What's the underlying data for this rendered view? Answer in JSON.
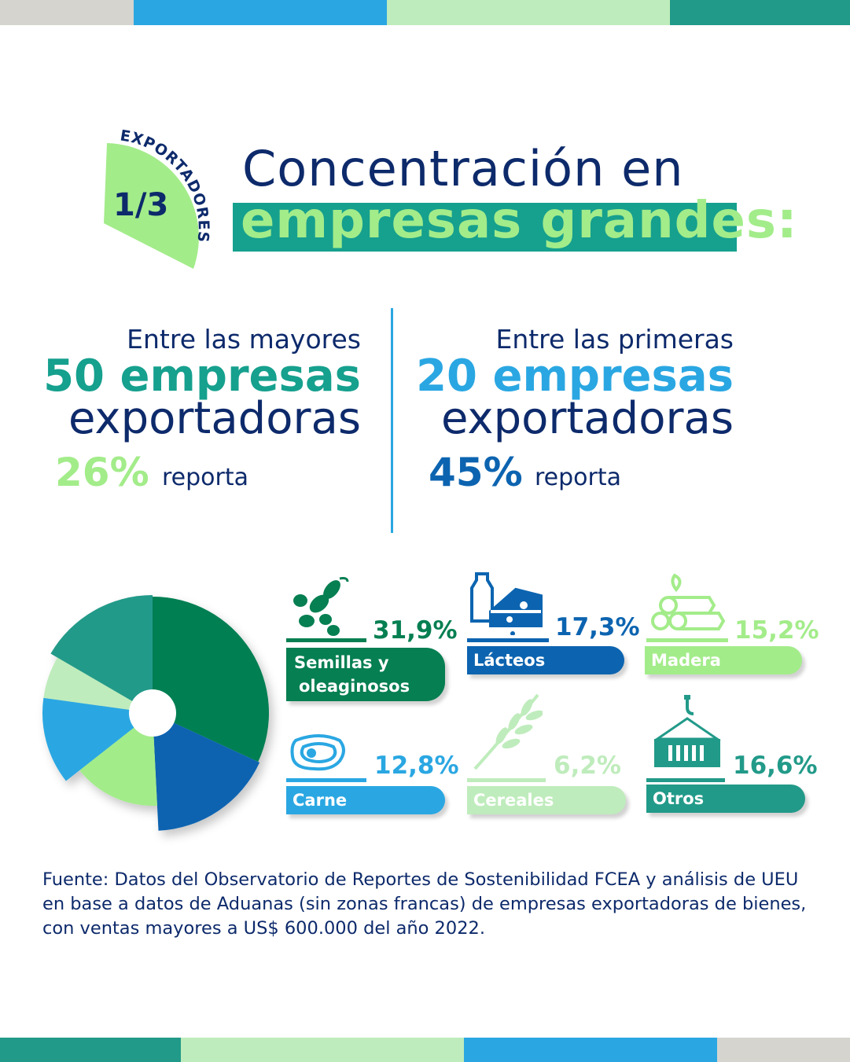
{
  "colors": {
    "navy": "#0d2a6b",
    "teal": "#16a08e",
    "light_green": "#a3ec8a",
    "sky_blue": "#2aa7e2",
    "dark_green": "#067f52",
    "blue": "#0c64b0",
    "pale_green": "#bfecbc",
    "grey": "#d6d4cf"
  },
  "badge": {
    "label": "EXPORTADORES",
    "number": "1/3"
  },
  "title": {
    "line1": "Concentración en",
    "line2": "empresas grandes:"
  },
  "stats": [
    {
      "intro": "Entre las mayores",
      "highlight": "50 empresas",
      "subject": "exportadoras",
      "percent": "26%",
      "verb": "reporta"
    },
    {
      "intro": "Entre las primeras",
      "highlight": "20 empresas",
      "subject": "exportadoras",
      "percent": "45%",
      "verb": "reporta"
    }
  ],
  "chart_data": {
    "type": "pie",
    "categories": [
      "Semillas y oleaginosos",
      "Lácteos",
      "Madera",
      "Carne",
      "Cereales",
      "Otros"
    ],
    "values": [
      31.9,
      17.3,
      15.2,
      12.8,
      6.2,
      16.6
    ],
    "value_labels": [
      "31,9%",
      "17,3%",
      "15,2%",
      "12,8%",
      "6,2%",
      "16,6%"
    ],
    "label_lines": [
      [
        "Semillas y",
        "oleaginosos"
      ],
      [
        "Lácteos"
      ],
      [
        "Madera"
      ],
      [
        "Carne"
      ],
      [
        "Cereales"
      ],
      [
        "Otros"
      ]
    ],
    "icons": [
      "soybean-pod-icon",
      "milk-and-cheese-icon",
      "wood-logs-icon",
      "meat-steak-icon",
      "wheat-stalk-icon",
      "shipping-container-icon"
    ],
    "colors": [
      "#067f52",
      "#0c64b0",
      "#a3ec8a",
      "#2aa7e2",
      "#bfecbc",
      "#229a89"
    ],
    "value_colors": [
      "#067f52",
      "#0c64b0",
      "#a3ec8a",
      "#2aa7e2",
      "#bfecbc",
      "#229a89"
    ],
    "units": "%",
    "legend": "right",
    "donut_hole": true
  },
  "source": "Fuente: Datos del Observatorio de Reportes de Sostenibilidad FCEA y análisis de UEU en base a datos de Aduanas (sin zonas francas) de empresas exportadoras de bienes, con ventas mayores a US$ 600.000 del año 2022."
}
